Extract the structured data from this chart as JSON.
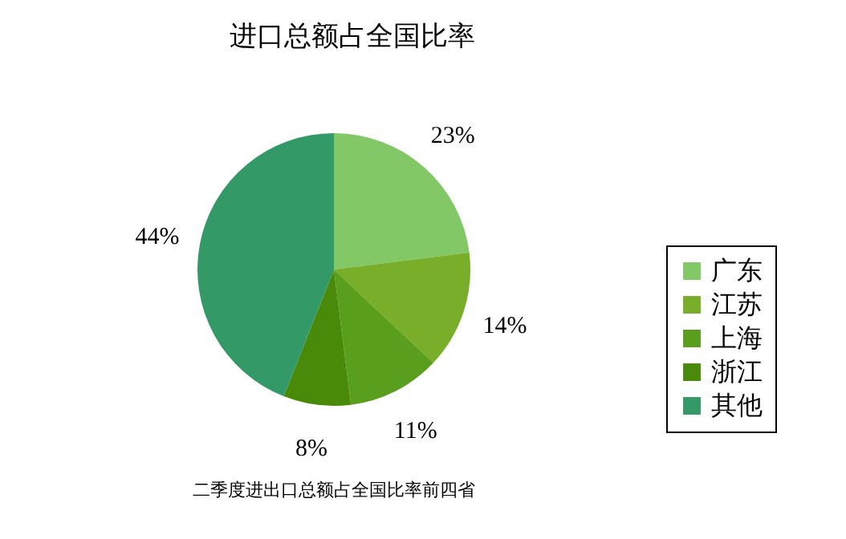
{
  "chart_data": {
    "type": "pie",
    "title": "进口总额占全国比率",
    "categories": [
      "广东",
      "江苏",
      "上海",
      "浙江",
      "其他"
    ],
    "values": [
      23,
      14,
      11,
      8,
      44
    ],
    "value_labels": [
      "23%",
      "14%",
      "11%",
      "8%",
      "44%"
    ],
    "colors": [
      "#82c866",
      "#78ae2a",
      "#5a9e1e",
      "#4a8a0a",
      "#339966"
    ],
    "legend": "right",
    "annotations": [
      "二季度进出口总额占全国比率前四省"
    ]
  }
}
